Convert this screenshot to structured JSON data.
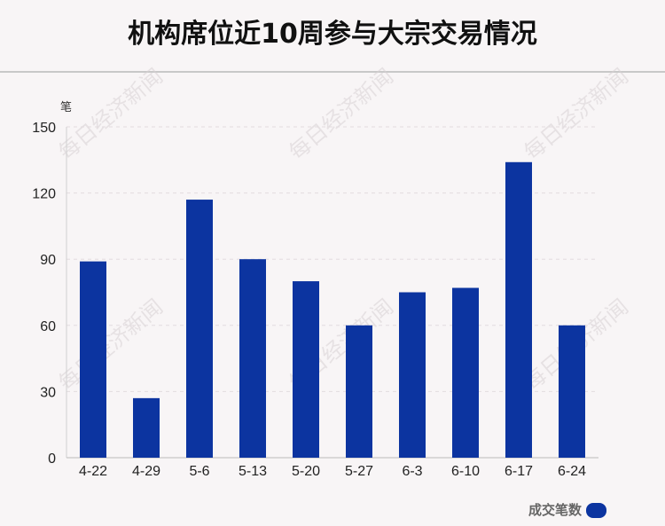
{
  "chart_data": {
    "type": "bar",
    "title": "机构席位近10周参与大宗交易情况",
    "ylabel": "笔",
    "xlabel": "",
    "categories": [
      "4-22",
      "4-29",
      "5-6",
      "5-13",
      "5-20",
      "5-27",
      "6-3",
      "6-10",
      "6-17",
      "6-24"
    ],
    "series": [
      {
        "name": "成交笔数",
        "values": [
          89,
          27,
          117,
          90,
          80,
          60,
          75,
          77,
          134,
          60
        ],
        "color": "#0c34a0"
      }
    ],
    "ylim": [
      0,
      150
    ],
    "yticks": [
      "0",
      "30",
      "60",
      "90",
      "120",
      "150"
    ],
    "grid": true,
    "legend_position": "bottom-right"
  },
  "watermark": "每日经济新闻"
}
